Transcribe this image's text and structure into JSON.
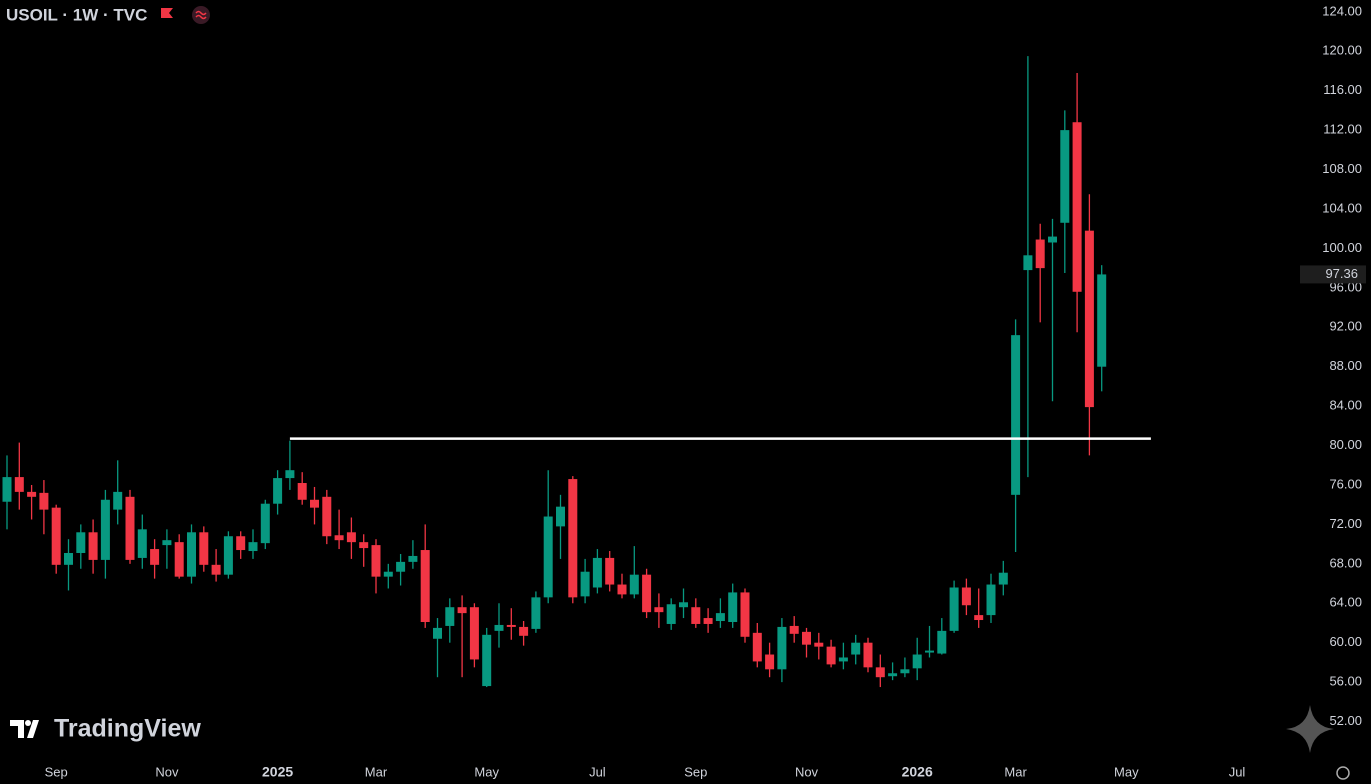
{
  "chart_data": {
    "type": "candlestick",
    "title": "USOIL · 1W · TVC",
    "watermark": "TradingView",
    "categories": [
      null,
      null,
      null,
      null,
      "Sep",
      null,
      null,
      null,
      null,
      null,
      null,
      null,
      null,
      "Nov",
      null,
      null,
      null,
      null,
      null,
      null,
      null,
      null,
      "2025",
      null,
      null,
      null,
      null,
      null,
      null,
      null,
      "Mar",
      null,
      null,
      null,
      null,
      null,
      null,
      null,
      null,
      "May",
      null,
      null,
      null,
      null,
      null,
      null,
      null,
      null,
      "Jul",
      null,
      null,
      null,
      null,
      null,
      null,
      null,
      "Sep",
      null,
      null,
      null,
      null,
      null,
      null,
      null,
      null,
      "Nov",
      null,
      null,
      null,
      null,
      null,
      null,
      null,
      null,
      "2026",
      null,
      null,
      null,
      null,
      null,
      null,
      null,
      "Mar",
      null,
      null,
      null,
      null,
      null,
      null,
      null,
      null,
      "May",
      null,
      null,
      null,
      null,
      null,
      null,
      null,
      null,
      "Jul",
      null,
      null,
      null
    ],
    "open": [
      74.3,
      76.8,
      75.3,
      75.2,
      73.7,
      67.9,
      69.1,
      71.2,
      68.4,
      73.5,
      74.8,
      68.6,
      69.5,
      69.9,
      70.2,
      66.7,
      71.2,
      67.9,
      66.9,
      70.8,
      69.3,
      70.1,
      74.1,
      76.7,
      76.2,
      74.5,
      74.8,
      70.9,
      71.2,
      70.2,
      69.9,
      66.7,
      67.2,
      68.2,
      69.4,
      60.4,
      61.7,
      63.6,
      63.6,
      55.6,
      61.2,
      61.8,
      61.6,
      61.4,
      64.6,
      71.8,
      76.6,
      64.7,
      65.6,
      68.6,
      65.9,
      64.9,
      66.9,
      63.6,
      61.9,
      63.6,
      63.6,
      62.5,
      62.2,
      62.1,
      65.1,
      61.0,
      58.8,
      57.3,
      61.7,
      61.1,
      60.0,
      59.6,
      58.1,
      58.8,
      60.0,
      57.5,
      56.6,
      56.9,
      57.4,
      59.0,
      58.9,
      61.2,
      65.6,
      62.8,
      62.8,
      65.9,
      75.0,
      97.8,
      100.9,
      100.6,
      102.6,
      112.8,
      101.8,
      88.0,
      null,
      null,
      null,
      null,
      null,
      null,
      null,
      null,
      null,
      null,
      null,
      null,
      null,
      null
    ],
    "high": [
      79.0,
      80.3,
      76.0,
      76.5,
      74.0,
      70.5,
      72.0,
      72.5,
      75.5,
      78.5,
      75.5,
      73.0,
      70.5,
      71.5,
      71.0,
      72.0,
      71.8,
      69.5,
      71.3,
      71.3,
      71.5,
      74.5,
      77.5,
      80.5,
      77.3,
      75.8,
      75.5,
      73.5,
      72.7,
      71.0,
      70.5,
      68.0,
      69.0,
      70.4,
      72.0,
      62.5,
      64.5,
      64.8,
      64.0,
      61.5,
      64.0,
      63.5,
      62.2,
      65.2,
      77.5,
      75.0,
      76.9,
      68.5,
      69.5,
      69.3,
      67.0,
      69.8,
      67.5,
      65.0,
      64.5,
      65.5,
      64.5,
      63.5,
      64.5,
      66.0,
      65.5,
      62.0,
      60.0,
      62.5,
      62.7,
      61.5,
      61.0,
      60.3,
      60.0,
      60.8,
      60.5,
      58.8,
      58.0,
      58.5,
      60.5,
      61.7,
      62.5,
      66.3,
      66.5,
      65.5,
      67.0,
      68.3,
      92.8,
      119.5,
      102.5,
      103.0,
      114.0,
      117.8,
      105.5,
      98.3,
      null,
      null,
      null,
      null,
      null,
      null,
      null,
      null,
      null,
      null,
      null,
      null,
      null,
      null
    ],
    "low": [
      71.5,
      73.5,
      72.5,
      71.0,
      67.0,
      65.3,
      67.5,
      67.0,
      66.5,
      72.0,
      68.0,
      67.5,
      66.5,
      67.5,
      66.5,
      66.0,
      67.2,
      66.2,
      66.5,
      68.5,
      68.5,
      69.5,
      73.0,
      75.5,
      74.0,
      72.0,
      70.0,
      69.5,
      68.5,
      67.7,
      65.0,
      65.5,
      65.8,
      67.5,
      61.5,
      56.5,
      60.0,
      56.5,
      57.5,
      55.5,
      59.5,
      60.3,
      59.7,
      61.0,
      64.0,
      68.5,
      64.0,
      64.0,
      65.0,
      65.2,
      64.5,
      64.5,
      62.5,
      61.5,
      61.3,
      62.5,
      61.5,
      61.0,
      61.5,
      61.5,
      60.0,
      57.5,
      56.5,
      56.0,
      60.0,
      58.5,
      58.3,
      57.5,
      57.3,
      57.8,
      57.0,
      55.5,
      56.2,
      56.5,
      56.2,
      58.5,
      58.8,
      61.0,
      62.8,
      61.5,
      62.0,
      64.8,
      69.2,
      76.8,
      92.5,
      84.5,
      97.5,
      91.5,
      79.0,
      85.5,
      null,
      null,
      null,
      null,
      null,
      null,
      null,
      null,
      null,
      null,
      null,
      null,
      null,
      null
    ],
    "close": [
      76.8,
      75.3,
      74.8,
      73.5,
      67.9,
      69.1,
      71.2,
      68.4,
      74.5,
      75.3,
      68.4,
      71.5,
      67.9,
      70.4,
      66.7,
      71.2,
      67.9,
      66.9,
      70.8,
      69.4,
      70.2,
      74.1,
      76.7,
      77.5,
      74.5,
      73.7,
      70.8,
      70.4,
      70.2,
      69.6,
      66.7,
      67.2,
      68.2,
      68.8,
      62.1,
      61.5,
      63.6,
      63.0,
      58.3,
      60.8,
      61.8,
      61.6,
      60.7,
      64.6,
      72.8,
      73.8,
      64.6,
      67.2,
      68.6,
      65.9,
      64.9,
      66.9,
      63.1,
      63.1,
      63.9,
      64.1,
      61.9,
      61.9,
      63.0,
      65.1,
      60.6,
      58.1,
      57.3,
      61.6,
      60.9,
      59.8,
      59.6,
      57.8,
      58.5,
      60.0,
      57.5,
      56.5,
      56.9,
      57.3,
      58.8,
      59.2,
      61.2,
      65.6,
      63.8,
      62.3,
      65.9,
      67.1,
      91.2,
      99.3,
      98.0,
      101.2,
      112.0,
      95.6,
      83.9,
      97.36,
      null,
      null,
      null,
      null,
      null,
      null,
      null,
      null,
      null,
      null,
      null,
      null,
      null,
      null
    ],
    "up_color": "#089981",
    "down_color": "#f23645",
    "last_price": {
      "value": 97.36,
      "label": "97.36"
    },
    "hline": {
      "value": 80.7
    },
    "ylim": [
      48.1,
      125.2
    ],
    "yticks": [
      {
        "value": 52,
        "label": "52.00"
      },
      {
        "value": 56,
        "label": "56.00"
      },
      {
        "value": 60,
        "label": "60.00"
      },
      {
        "value": 64,
        "label": "64.00"
      },
      {
        "value": 68,
        "label": "68.00"
      },
      {
        "value": 72,
        "label": "72.00"
      },
      {
        "value": 76,
        "label": "76.00"
      },
      {
        "value": 80,
        "label": "80.00"
      },
      {
        "value": 84,
        "label": "84.00"
      },
      {
        "value": 88,
        "label": "88.00"
      },
      {
        "value": 92,
        "label": "92.00"
      },
      {
        "value": 96,
        "label": "96.00"
      },
      {
        "value": 100,
        "label": "100.00"
      },
      {
        "value": 104,
        "label": "104.00"
      },
      {
        "value": 108,
        "label": "108.00"
      },
      {
        "value": 112,
        "label": "112.00"
      },
      {
        "value": 116,
        "label": "116.00"
      },
      {
        "value": 120,
        "label": "120.00"
      },
      {
        "value": 124,
        "label": "124.00"
      }
    ],
    "grid": false
  }
}
